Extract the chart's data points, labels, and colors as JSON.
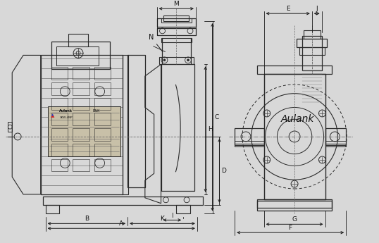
{
  "bg_color": "#d8d8d8",
  "lc": "#2a2a2a",
  "dc": "#1a1a1a",
  "cl_color": "#666666",
  "lbl_color": "#111111",
  "figsize": [
    5.38,
    3.45
  ],
  "dpi": 100,
  "brand": "Aulank",
  "dims": [
    "A",
    "B",
    "C",
    "D",
    "E",
    "F",
    "G",
    "H",
    "I",
    "K",
    "M",
    "N",
    "J"
  ]
}
